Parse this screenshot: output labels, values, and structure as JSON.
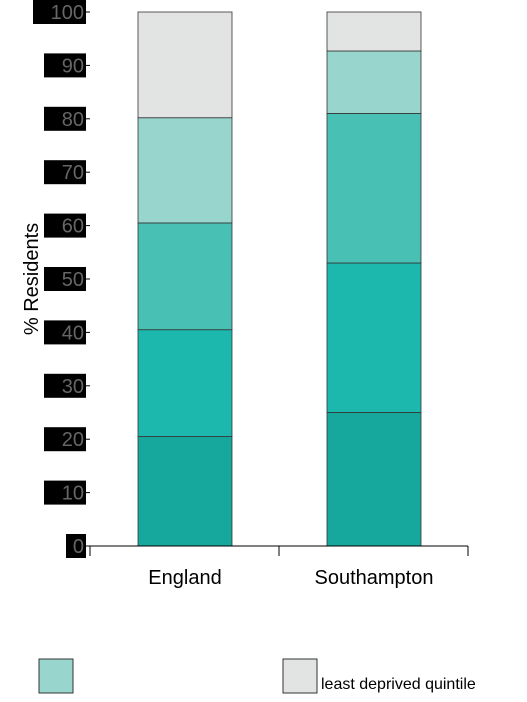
{
  "chart_data": {
    "type": "bar",
    "stacked": true,
    "orientation": "vertical",
    "categories": [
      "England",
      "Southampton"
    ],
    "ylabel": "% Residents",
    "ylim": [
      0,
      100
    ],
    "yticks": [
      0,
      10,
      20,
      30,
      40,
      50,
      60,
      70,
      80,
      90,
      100
    ],
    "grid": false,
    "legend_position": "bottom",
    "series": [
      {
        "name": "",
        "color": "#16a89c",
        "values": [
          20.5,
          25
        ]
      },
      {
        "name": "",
        "color": "#1db8ad",
        "values": [
          20,
          28
        ]
      },
      {
        "name": "",
        "color": "#48c0b4",
        "values": [
          20,
          28
        ]
      },
      {
        "name": "",
        "color": "#98d6cd",
        "values": [
          19.7,
          11.7
        ]
      },
      {
        "name": "least deprived quintile",
        "color": "#e2e4e3",
        "values": [
          19.8,
          7.3
        ]
      }
    ],
    "legend": [
      {
        "label": "",
        "color": "#98d6cd"
      },
      {
        "label": "least deprived quintile",
        "color": "#e2e4e3"
      }
    ]
  }
}
